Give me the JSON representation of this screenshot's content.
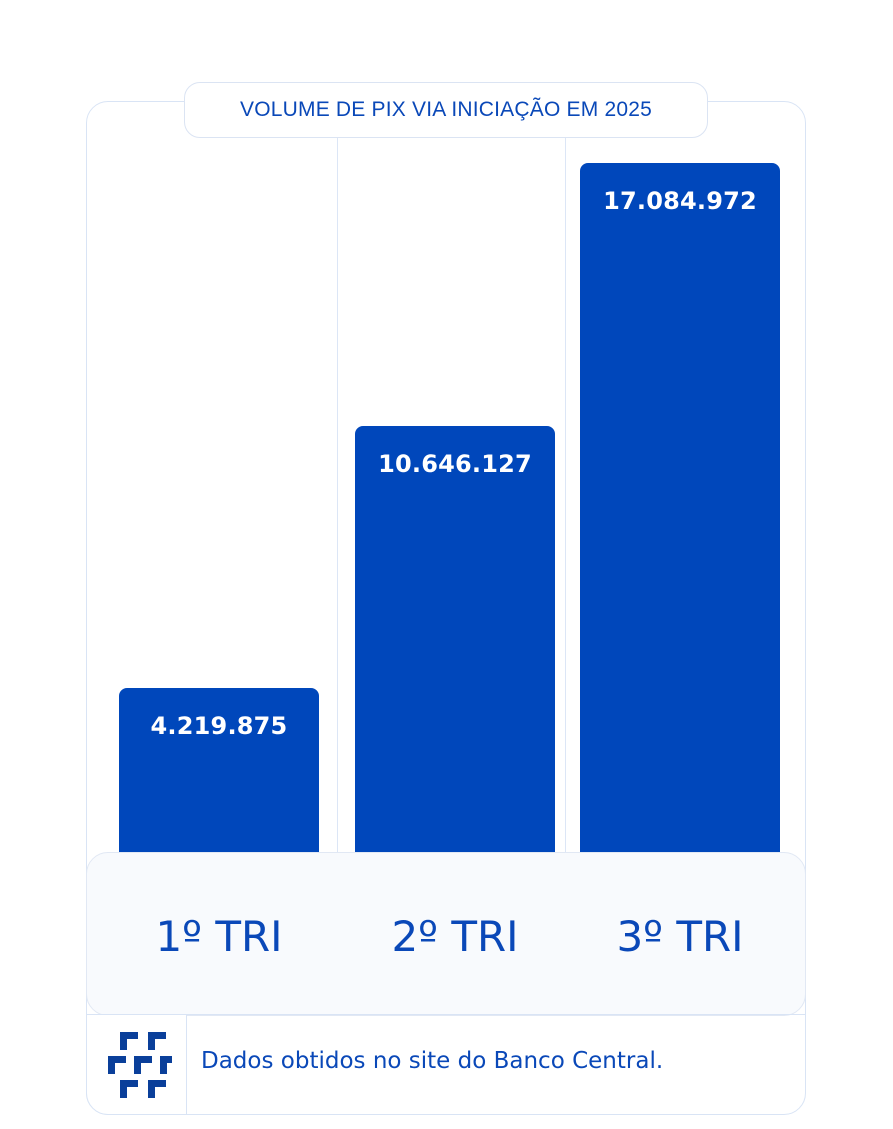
{
  "chart_data": {
    "type": "bar",
    "title": "VOLUME DE PIX VIA INICIAÇÃO EM 2025",
    "categories": [
      "1º TRI",
      "2º TRI",
      "3º TRI"
    ],
    "values": [
      4219875,
      10646127,
      17084972
    ],
    "value_labels": [
      "4.219.875",
      "10.646.127",
      "17.084.972"
    ],
    "xlabel": "",
    "ylabel": "",
    "grid": false,
    "legend": "none",
    "bar_color": "#0047bb"
  },
  "footer": {
    "note": "Dados obtidos no site do Banco Central.",
    "logo_icon": "chevron-stack-logo-icon"
  }
}
